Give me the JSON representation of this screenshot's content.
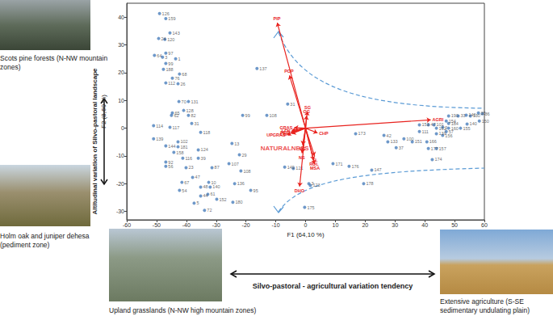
{
  "chart_data": {
    "type": "scatter",
    "x_label": "F1 (64,10 %)",
    "y_label": "F2 (8,60 %)",
    "xlim": [
      -60,
      60
    ],
    "xticks": [
      -60,
      -50,
      -40,
      -30,
      -20,
      -10,
      0,
      10,
      20,
      30,
      40,
      50,
      60
    ],
    "ylim": [
      -33,
      45
    ],
    "yticks": [
      -30,
      -20,
      -10,
      0,
      10,
      20,
      30,
      40
    ],
    "grid": false,
    "points": {
      "color": "#4a7ebb",
      "marker": "circle",
      "labels": [
        "126",
        "159",
        "143",
        "24",
        "120",
        "97",
        "64",
        "3",
        "1",
        "99",
        "188",
        "68",
        "76",
        "112",
        "26",
        "137",
        "70",
        "131",
        "128",
        "65",
        "62",
        "82",
        "108",
        "99",
        "31",
        "31",
        "114",
        "118",
        "13",
        "117",
        "139",
        "102",
        "144",
        "181",
        "158",
        "124",
        "116",
        "39",
        "92",
        "56",
        "23",
        "87",
        "29",
        "107",
        "108",
        "47",
        "67",
        "10",
        "48",
        "140",
        "136",
        "95",
        "54",
        "44",
        "61",
        "152",
        "5",
        "180",
        "72",
        "149",
        "121",
        "171",
        "176",
        "147",
        "3",
        "123",
        "178",
        "175",
        "173",
        "42",
        "133",
        "100",
        "151",
        "37",
        "174",
        "157",
        "177",
        "166",
        "153",
        "47",
        "111",
        "190",
        "33",
        "146",
        "130",
        "36",
        "35",
        "154",
        "140",
        "150",
        "155",
        "160",
        "156",
        "139",
        "101",
        "184",
        "2",
        "162",
        "57"
      ],
      "x": [
        -49,
        -46.9,
        -45.5,
        -49.3,
        -47.2,
        -46.9,
        -50.7,
        -48,
        -43.6,
        -46.9,
        -47.7,
        -42.3,
        -44.7,
        -46.9,
        -42.8,
        -16.3,
        -42.5,
        -39.3,
        -40.9,
        -44.7,
        -45,
        -39.3,
        -13,
        -21.1,
        -6,
        -38.2,
        -51,
        -35.2,
        -24.7,
        -45.5,
        -51,
        -42.8,
        -46.9,
        -42.8,
        -44.2,
        -36,
        -41.2,
        -36,
        -46.9,
        -46.9,
        -40.1,
        -31.4,
        -22.2,
        -25.7,
        -21.7,
        -37.9,
        -41.5,
        -32.5,
        -35.2,
        -32,
        -23.8,
        -18.4,
        -42.3,
        -35.2,
        -32.8,
        -29.8,
        -37.4,
        -24.4,
        -33.9,
        -7,
        -4.1,
        9.2,
        14.6,
        22.2,
        1.1,
        1.6,
        19.5,
        -0.3,
        16.8,
        26.3,
        27.6,
        33,
        35.8,
        30.4,
        42.5,
        43.9,
        41.2,
        40.7,
        38.2,
        41.2,
        38.2,
        48,
        51.2,
        53.9,
        55.3,
        59.3,
        58,
        47.2,
        54.2,
        58.3,
        52,
        48,
        46,
        43.9,
        43.1,
        48,
        46,
        43.9,
        47.2
      ],
      "y": [
        41.3,
        39.5,
        34.3,
        32.3,
        32,
        27,
        26.2,
        25.6,
        25,
        23.3,
        21.2,
        19.5,
        18,
        16.3,
        16,
        21.5,
        9.6,
        9.6,
        6.4,
        5.5,
        4.6,
        4.6,
        4.6,
        4.6,
        8.7,
        1.7,
        0.9,
        -1.5,
        -5.5,
        0.3,
        -3.8,
        -4.9,
        -6.4,
        -6.7,
        -8.7,
        -7.8,
        -10.8,
        -10.8,
        -12.2,
        -13.7,
        -14.2,
        -14.2,
        -9.6,
        -12.8,
        -15.4,
        -17.7,
        -19.5,
        -19.5,
        -21.2,
        -21.2,
        -20,
        -22.4,
        -22.4,
        -24.4,
        -23.8,
        -25.6,
        -27,
        -26.7,
        -29.6,
        -14,
        -14.5,
        -12.8,
        -13.7,
        -15.1,
        -20,
        -20.6,
        -20,
        -28.5,
        -2,
        -2.6,
        -4.9,
        -3.8,
        -4.9,
        -7,
        -11.3,
        -7.3,
        -7.3,
        -4.9,
        1.2,
        1.2,
        -1.2,
        4.4,
        4.4,
        4.7,
        4.4,
        5.2,
        5.5,
        2.6,
        1.5,
        2.6,
        0,
        0,
        -2.6,
        -2,
        1.2,
        1.7,
        0.3,
        0,
        -1.2
      ]
    },
    "vectors": {
      "color": "#e8231f",
      "names": [
        "PIP",
        "POP",
        "SG",
        "OG",
        "GRAS",
        "LFN",
        "PEC",
        "CWC",
        "UPGRAS",
        "CHP",
        "AGRI",
        "NG",
        "NS",
        "SL",
        "ROL",
        "MSA",
        "DHO"
      ],
      "x": [
        -9.5,
        -5.4,
        0.6,
        0.3,
        -3.8,
        -4.6,
        -4.9,
        -4.6,
        -6.2,
        4,
        42,
        -1,
        -1.2,
        3,
        2.7,
        3,
        -2
      ],
      "y": [
        38,
        19,
        6,
        4.5,
        0.2,
        -0.8,
        -1.4,
        -2,
        -2.3,
        -1.7,
        3,
        -6,
        -9,
        -10,
        -11.5,
        -13,
        -21
      ]
    },
    "annotations": [
      {
        "text": "NATURALNESS",
        "x": -7,
        "y": -7.3
      }
    ],
    "panels": [
      "Scots pine forests (N-NW mountain zones)",
      "Holm oak and juniper dehesa (pediment zone)",
      "Upland grasslands (N-NW high mountain zones)",
      "Extensive agriculture (S-SE sedimentary undulating plain)"
    ],
    "tendencies": [
      "Altitudinal variation of Silvo-pastoral landscape",
      "Silvo-pastoral - agricultural variation tendency"
    ]
  }
}
